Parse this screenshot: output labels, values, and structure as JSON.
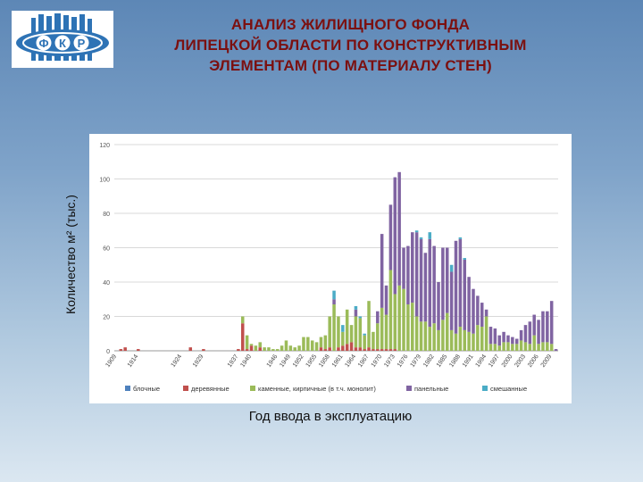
{
  "title_lines": [
    "АНАЛИЗ ЖИЛИЩНОГО ФОНДА",
    "ЛИПЕЦКОЙ ОБЛАСТИ ПО КОНСТРУКТИВНЫМ",
    "ЭЛЕМЕНТАМ (ПО МАТЕРИАЛУ СТЕН)"
  ],
  "logo": {
    "text": "ФКР",
    "icon": "fkr-building-logo",
    "color": "#2e73b5"
  },
  "chart_data": {
    "type": "bar",
    "stacked": true,
    "ylabel": "Количество м² (тыс.)",
    "xlabel": "Год ввода в эксплуатацию",
    "ylim": [
      0,
      120
    ],
    "yticks": [
      0,
      20,
      40,
      60,
      80,
      100,
      120
    ],
    "grid": true,
    "legend_position": "bottom",
    "categories": [
      1909,
      1910,
      1911,
      1912,
      1913,
      1914,
      1915,
      1916,
      1917,
      1918,
      1919,
      1920,
      1921,
      1922,
      1923,
      1924,
      1925,
      1926,
      1927,
      1928,
      1929,
      1930,
      1931,
      1932,
      1933,
      1934,
      1935,
      1936,
      1937,
      1938,
      1939,
      1940,
      1941,
      1942,
      1943,
      1944,
      1945,
      1946,
      1947,
      1948,
      1949,
      1950,
      1951,
      1952,
      1953,
      1954,
      1955,
      1956,
      1957,
      1958,
      1959,
      1960,
      1961,
      1962,
      1963,
      1964,
      1965,
      1966,
      1967,
      1968,
      1969,
      1970,
      1971,
      1972,
      1973,
      1974,
      1975,
      1976,
      1977,
      1978,
      1979,
      1980,
      1981,
      1982,
      1983,
      1984,
      1985,
      1986,
      1987,
      1988,
      1989,
      1990,
      1991,
      1992,
      1993,
      1994,
      1995,
      1996,
      1997,
      1998,
      1999,
      2000,
      2001,
      2002,
      2003,
      2004,
      2005,
      2006,
      2007,
      2008,
      2009,
      2010
    ],
    "tick_labels": [
      "1909",
      "1914",
      "1924",
      "1929",
      "1937",
      "1940",
      "1946",
      "1949",
      "1952",
      "1955",
      "1958",
      "1961",
      "1964",
      "1967",
      "1970",
      "1973",
      "1976",
      "1979",
      "1982",
      "1985",
      "1988",
      "1991",
      "1994",
      "1997",
      "2000",
      "2003",
      "2006",
      "2009"
    ],
    "tick_years": [
      1909,
      1914,
      1924,
      1929,
      1937,
      1940,
      1946,
      1949,
      1952,
      1955,
      1958,
      1961,
      1964,
      1967,
      1970,
      1973,
      1976,
      1979,
      1982,
      1985,
      1988,
      1991,
      1994,
      1997,
      2000,
      2003,
      2006,
      2009
    ],
    "series": [
      {
        "name": "блочные",
        "color": "#4f81bd",
        "values": [
          0,
          0,
          0,
          0,
          0,
          0,
          0,
          0,
          0,
          0,
          0,
          0,
          0,
          0,
          0,
          0,
          0,
          0,
          0,
          0,
          0,
          0,
          0,
          0,
          0,
          0,
          0,
          0,
          0,
          0,
          0,
          0,
          0,
          0,
          0,
          0,
          0,
          0,
          0,
          0,
          0,
          0,
          0,
          0,
          0,
          0,
          0,
          0,
          0,
          0,
          0,
          0,
          0,
          0,
          0,
          0,
          0,
          0,
          0,
          0,
          0,
          0,
          0,
          0,
          0,
          0,
          0,
          0,
          0,
          0,
          0,
          0,
          0,
          0,
          0,
          0,
          0,
          0,
          0,
          0,
          0,
          0,
          0,
          0,
          0,
          0,
          0,
          0,
          0,
          0,
          0,
          0,
          0,
          0,
          0,
          0,
          0,
          0,
          0,
          0,
          0,
          0
        ]
      },
      {
        "name": "деревянные",
        "color": "#c0504d",
        "values": [
          0,
          1,
          2,
          0,
          0,
          1,
          0,
          0,
          0,
          0,
          0,
          0,
          0,
          0,
          0,
          0,
          0,
          2,
          0,
          0,
          1,
          0,
          0,
          0,
          0,
          0,
          0,
          0,
          1,
          16,
          1,
          3,
          0,
          2,
          0,
          0,
          0,
          0,
          0,
          0,
          0,
          0,
          0,
          0,
          0,
          0,
          0,
          2,
          1,
          2,
          0,
          2,
          3,
          4,
          5,
          2,
          2,
          1,
          2,
          1,
          1,
          1,
          1,
          1,
          1,
          0,
          0,
          0,
          0,
          0,
          0,
          0,
          0,
          0,
          0,
          0,
          0,
          0,
          0,
          0,
          0,
          0,
          0,
          0,
          0,
          0,
          0,
          0,
          0,
          0,
          0,
          0,
          0,
          0,
          0,
          0,
          0,
          0,
          0,
          0,
          0,
          0
        ]
      },
      {
        "name": "каменные, кирпичные (в т.ч. монолит)",
        "color": "#9bbb59",
        "values": [
          0,
          0,
          0,
          0,
          0,
          0,
          0,
          0,
          0,
          0,
          0,
          0,
          0,
          0,
          0,
          0,
          0,
          0,
          0,
          0,
          0,
          0,
          0,
          0,
          0,
          0,
          0,
          0,
          0,
          4,
          8,
          1,
          3,
          3,
          2,
          2,
          1,
          1,
          3,
          6,
          3,
          2,
          3,
          8,
          8,
          6,
          5,
          6,
          8,
          18,
          27,
          18,
          8,
          20,
          10,
          18,
          17,
          8,
          27,
          10,
          15,
          24,
          20,
          46,
          32,
          38,
          36,
          27,
          28,
          20,
          17,
          17,
          14,
          16,
          12,
          18,
          22,
          12,
          10,
          14,
          12,
          11,
          10,
          15,
          14,
          20,
          4,
          4,
          3,
          5,
          5,
          4,
          4,
          6,
          5,
          4,
          9,
          4,
          5,
          5,
          4,
          0
        ]
      },
      {
        "name": "панельные",
        "color": "#8064a2",
        "values": [
          0,
          0,
          0,
          0,
          0,
          0,
          0,
          0,
          0,
          0,
          0,
          0,
          0,
          0,
          0,
          0,
          0,
          0,
          0,
          0,
          0,
          0,
          0,
          0,
          0,
          0,
          0,
          0,
          0,
          0,
          0,
          0,
          0,
          0,
          0,
          0,
          0,
          0,
          0,
          0,
          0,
          0,
          0,
          0,
          0,
          0,
          0,
          0,
          0,
          0,
          3,
          0,
          0,
          0,
          0,
          4,
          0,
          0,
          0,
          0,
          7,
          43,
          17,
          38,
          68,
          66,
          24,
          34,
          41,
          49,
          48,
          40,
          51,
          45,
          28,
          42,
          38,
          34,
          54,
          51,
          41,
          32,
          26,
          17,
          14,
          4,
          10,
          9,
          6,
          6,
          4,
          4,
          3,
          6,
          10,
          13,
          12,
          14,
          18,
          18,
          25,
          1
        ]
      },
      {
        "name": "смешанные",
        "color": "#4bacc6",
        "values": [
          0,
          0,
          0,
          0,
          0,
          0,
          0,
          0,
          0,
          0,
          0,
          0,
          0,
          0,
          0,
          0,
          0,
          0,
          0,
          0,
          0,
          0,
          0,
          0,
          0,
          0,
          0,
          0,
          0,
          0,
          0,
          0,
          0,
          0,
          0,
          0,
          0,
          0,
          0,
          0,
          0,
          0,
          0,
          0,
          0,
          0,
          0,
          0,
          0,
          0,
          5,
          0,
          4,
          0,
          0,
          2,
          1,
          1,
          0,
          0,
          0,
          0,
          0,
          0,
          0,
          0,
          0,
          0,
          0,
          1,
          1,
          0,
          4,
          0,
          0,
          0,
          0,
          4,
          0,
          1,
          1,
          0,
          0,
          0,
          0,
          0,
          0,
          0,
          0,
          0,
          0,
          0,
          0,
          0,
          0,
          0,
          0,
          0,
          0,
          0,
          0,
          0
        ]
      }
    ]
  }
}
